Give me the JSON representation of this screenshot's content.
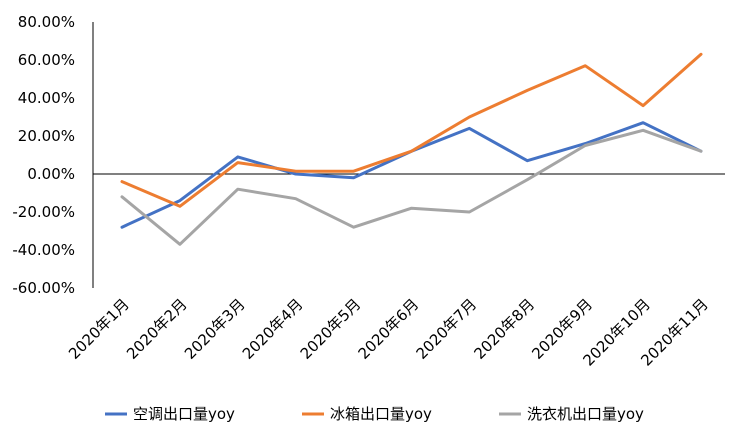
{
  "chart_data": {
    "type": "line",
    "title": "",
    "xlabel": "",
    "ylabel": "",
    "categories": [
      "2020年1月",
      "2020年2月",
      "2020年3月",
      "2020年4月",
      "2020年5月",
      "2020年6月",
      "2020年7月",
      "2020年8月",
      "2020年9月",
      "2020年10月",
      "2020年11月"
    ],
    "ylim": [
      -60,
      80
    ],
    "yticks": [
      80,
      60,
      40,
      20,
      0,
      -20,
      -40,
      -60
    ],
    "ytick_labels": [
      "80.00%",
      "60.00%",
      "40.00%",
      "20.00%",
      "0.00%",
      "-20.00%",
      "-40.00%",
      "-60.00%"
    ],
    "grid": false,
    "legend_position": "bottom",
    "series": [
      {
        "name": "空调出口量yoy",
        "color": "#4472C4",
        "values": [
          -28,
          -14,
          9,
          0,
          -2,
          12,
          24,
          7,
          16,
          27,
          12
        ]
      },
      {
        "name": "冰箱出口量yoy",
        "color": "#ED7D31",
        "values": [
          -4,
          -17,
          6,
          1.5,
          1.5,
          12,
          30,
          44,
          57,
          36,
          63
        ]
      },
      {
        "name": "洗衣机出口量yoy",
        "color": "#A5A5A5",
        "values": [
          -12,
          -37,
          -8,
          -13,
          -28,
          -18,
          -20,
          -3,
          15,
          23,
          12
        ]
      }
    ]
  }
}
